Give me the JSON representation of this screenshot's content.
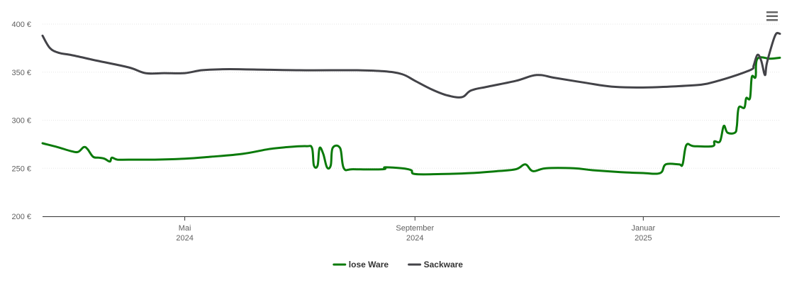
{
  "chart_data": {
    "type": "line",
    "ylim": [
      200,
      400
    ],
    "yticks": [
      200,
      250,
      300,
      350,
      400
    ],
    "ytick_suffix": " €",
    "xlim": [
      "2024-02-15",
      "2025-03-15"
    ],
    "xticks": [
      {
        "date": "2024-05-01",
        "label": "Mai",
        "year": "2024"
      },
      {
        "date": "2024-09-01",
        "label": "September",
        "year": "2024"
      },
      {
        "date": "2025-01-01",
        "label": "Januar",
        "year": "2025"
      }
    ],
    "grid": true,
    "legend_position": "bottom-center",
    "series": [
      {
        "name": "lose Ware",
        "color": "#0a7a0a",
        "points": [
          [
            "2024-02-15",
            276
          ],
          [
            "2024-02-23",
            272
          ],
          [
            "2024-03-01",
            268
          ],
          [
            "2024-03-05",
            267
          ],
          [
            "2024-03-08",
            272
          ],
          [
            "2024-03-10",
            270
          ],
          [
            "2024-03-13",
            262
          ],
          [
            "2024-03-16",
            261
          ],
          [
            "2024-03-19",
            260
          ],
          [
            "2024-03-22",
            257
          ],
          [
            "2024-03-23",
            261
          ],
          [
            "2024-03-26",
            259
          ],
          [
            "2024-04-01",
            259
          ],
          [
            "2024-04-15",
            259
          ],
          [
            "2024-05-01",
            260
          ],
          [
            "2024-05-15",
            262
          ],
          [
            "2024-06-01",
            265
          ],
          [
            "2024-06-15",
            270
          ],
          [
            "2024-06-25",
            272
          ],
          [
            "2024-07-05",
            273
          ],
          [
            "2024-07-08",
            271
          ],
          [
            "2024-07-09",
            253
          ],
          [
            "2024-07-11",
            253
          ],
          [
            "2024-07-12",
            271
          ],
          [
            "2024-07-14",
            265
          ],
          [
            "2024-07-16",
            251
          ],
          [
            "2024-07-18",
            253
          ],
          [
            "2024-07-19",
            271
          ],
          [
            "2024-07-23",
            271
          ],
          [
            "2024-07-25",
            250
          ],
          [
            "2024-07-30",
            249
          ],
          [
            "2024-08-15",
            249
          ],
          [
            "2024-08-16",
            251
          ],
          [
            "2024-08-25",
            250
          ],
          [
            "2024-08-30",
            248
          ],
          [
            "2024-09-01",
            244
          ],
          [
            "2024-09-15",
            244
          ],
          [
            "2024-10-01",
            245
          ],
          [
            "2024-10-15",
            247
          ],
          [
            "2024-10-25",
            249
          ],
          [
            "2024-10-30",
            254
          ],
          [
            "2024-11-03",
            247
          ],
          [
            "2024-11-10",
            250
          ],
          [
            "2024-11-25",
            250
          ],
          [
            "2024-12-05",
            248
          ],
          [
            "2024-12-20",
            246
          ],
          [
            "2025-01-01",
            245
          ],
          [
            "2025-01-10",
            245
          ],
          [
            "2025-01-13",
            254
          ],
          [
            "2025-01-20",
            254
          ],
          [
            "2025-01-22",
            254
          ],
          [
            "2025-01-24",
            274
          ],
          [
            "2025-01-28",
            273
          ],
          [
            "2025-02-07",
            273
          ],
          [
            "2025-02-08",
            278
          ],
          [
            "2025-02-11",
            278
          ],
          [
            "2025-02-13",
            294
          ],
          [
            "2025-02-15",
            287
          ],
          [
            "2025-02-19",
            287
          ],
          [
            "2025-02-20",
            294
          ],
          [
            "2025-02-21",
            313
          ],
          [
            "2025-02-24",
            313
          ],
          [
            "2025-02-25",
            323
          ],
          [
            "2025-02-27",
            323
          ],
          [
            "2025-02-28",
            345
          ],
          [
            "2025-03-02",
            345
          ],
          [
            "2025-03-03",
            364
          ],
          [
            "2025-03-10",
            364
          ],
          [
            "2025-03-15",
            365
          ]
        ]
      },
      {
        "name": "Sackware",
        "color": "#434348",
        "points": [
          [
            "2024-02-15",
            388
          ],
          [
            "2024-02-19",
            375
          ],
          [
            "2024-02-24",
            370
          ],
          [
            "2024-03-01",
            368
          ],
          [
            "2024-03-15",
            362
          ],
          [
            "2024-04-01",
            355
          ],
          [
            "2024-04-10",
            349
          ],
          [
            "2024-04-20",
            349
          ],
          [
            "2024-05-01",
            349
          ],
          [
            "2024-05-10",
            352
          ],
          [
            "2024-05-20",
            353
          ],
          [
            "2024-06-01",
            353
          ],
          [
            "2024-07-01",
            352
          ],
          [
            "2024-08-01",
            352
          ],
          [
            "2024-08-15",
            351
          ],
          [
            "2024-08-25",
            348
          ],
          [
            "2024-09-01",
            341
          ],
          [
            "2024-09-10",
            332
          ],
          [
            "2024-09-18",
            326
          ],
          [
            "2024-09-26",
            324
          ],
          [
            "2024-10-01",
            331
          ],
          [
            "2024-10-10",
            335
          ],
          [
            "2024-10-25",
            341
          ],
          [
            "2024-11-05",
            347
          ],
          [
            "2024-11-15",
            344
          ],
          [
            "2024-12-01",
            339
          ],
          [
            "2024-12-15",
            335
          ],
          [
            "2025-01-01",
            334
          ],
          [
            "2025-01-15",
            335
          ],
          [
            "2025-02-01",
            337
          ],
          [
            "2025-02-10",
            341
          ],
          [
            "2025-02-20",
            347
          ],
          [
            "2025-02-28",
            353
          ],
          [
            "2025-03-01",
            357
          ],
          [
            "2025-03-03",
            368
          ],
          [
            "2025-03-05",
            362
          ],
          [
            "2025-03-07",
            347
          ],
          [
            "2025-03-08",
            359
          ],
          [
            "2025-03-11",
            380
          ],
          [
            "2025-03-13",
            390
          ],
          [
            "2025-03-15",
            390
          ]
        ]
      }
    ]
  }
}
